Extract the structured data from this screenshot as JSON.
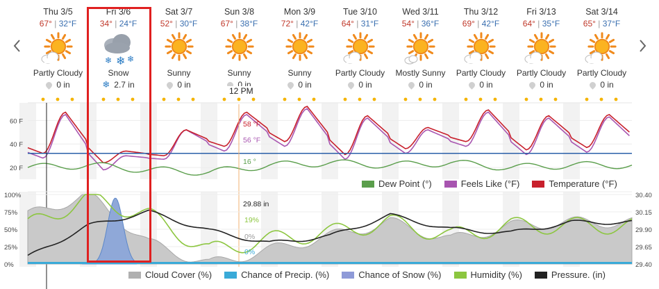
{
  "days": [
    {
      "date": "Thu 3/5",
      "hi": "67°",
      "lo": "32°F",
      "icon": "partly-cloudy-icon",
      "cond": "Partly Cloudy",
      "precip": "0 in",
      "precip_icon": "drop"
    },
    {
      "date": "Fri 3/6",
      "hi": "34°",
      "lo": "24°F",
      "icon": "snow-icon",
      "cond": "Snow",
      "precip": "2.7 in",
      "precip_icon": "snowflake"
    },
    {
      "date": "Sat 3/7",
      "hi": "52°",
      "lo": "30°F",
      "icon": "sunny-icon",
      "cond": "Sunny",
      "precip": "0 in",
      "precip_icon": "drop"
    },
    {
      "date": "Sun 3/8",
      "hi": "67°",
      "lo": "38°F",
      "icon": "sunny-icon",
      "cond": "Sunny",
      "precip": "0 in",
      "precip_icon": "drop"
    },
    {
      "date": "Mon 3/9",
      "hi": "72°",
      "lo": "42°F",
      "icon": "sunny-icon",
      "cond": "Sunny",
      "precip": "0 in",
      "precip_icon": "drop"
    },
    {
      "date": "Tue 3/10",
      "hi": "64°",
      "lo": "31°F",
      "icon": "partly-cloudy-icon",
      "cond": "Partly Cloudy",
      "precip": "0 in",
      "precip_icon": "drop"
    },
    {
      "date": "Wed 3/11",
      "hi": "54°",
      "lo": "36°F",
      "icon": "mostly-sunny-icon",
      "cond": "Mostly Sunny",
      "precip": "0 in",
      "precip_icon": "drop"
    },
    {
      "date": "Thu 3/12",
      "hi": "69°",
      "lo": "42°F",
      "icon": "partly-cloudy-icon",
      "cond": "Partly Cloudy",
      "precip": "0 in",
      "precip_icon": "drop"
    },
    {
      "date": "Fri 3/13",
      "hi": "64°",
      "lo": "35°F",
      "icon": "partly-cloudy-icon",
      "cond": "Partly Cloudy",
      "precip": "0 in",
      "precip_icon": "drop"
    },
    {
      "date": "Sat 3/14",
      "hi": "65°",
      "lo": "37°F",
      "icon": "partly-cloudy-icon",
      "cond": "Partly Cloudy",
      "precip": "0 in",
      "precip_icon": "drop"
    }
  ],
  "cursor": {
    "time": "12 PM",
    "temp": "58 °F",
    "feels": "56 °F",
    "dew": "16 °",
    "pressure": "29.88 in",
    "humidity": "19%",
    "cloud": "0%",
    "precip": "0%"
  },
  "temp_chart": {
    "yticks": [
      "60 F",
      "40 F",
      "20 F"
    ],
    "legend": [
      {
        "label": "Dew Point (°)",
        "color": "#5a9e4b"
      },
      {
        "label": "Feels Like (°F)",
        "color": "#a855b0"
      },
      {
        "label": "Temperature (°F)",
        "color": "#c8202c"
      }
    ]
  },
  "atmo_chart": {
    "yticks_left": [
      "100%",
      "75%",
      "50%",
      "25%",
      "0%"
    ],
    "yticks_right": [
      "30.40",
      "30.15",
      "29.90",
      "29.65",
      "29.40"
    ],
    "legend": [
      {
        "label": "Cloud Cover (%)",
        "color": "#b0b0b0"
      },
      {
        "label": "Chance of Precip. (%)",
        "color": "#3aaad8"
      },
      {
        "label": "Chance of Snow (%)",
        "color": "#8e9ad8"
      },
      {
        "label": "Humidity (%)",
        "color": "#8cc63f"
      },
      {
        "label": "Pressure. (in)",
        "color": "#222222"
      }
    ]
  },
  "chart_data": [
    {
      "type": "line",
      "x_days": [
        "Thu 3/5",
        "Fri 3/6",
        "Sat 3/7",
        "Sun 3/8",
        "Mon 3/9",
        "Tue 3/10",
        "Wed 3/11",
        "Thu 3/12",
        "Fri 3/13",
        "Sat 3/14"
      ],
      "ylabel": "",
      "ylim": [
        10,
        75
      ],
      "series": [
        {
          "name": "Temperature (°F)",
          "daily_high": [
            67,
            34,
            52,
            67,
            72,
            64,
            54,
            69,
            64,
            65
          ],
          "daily_low": [
            32,
            24,
            30,
            38,
            42,
            31,
            36,
            42,
            35,
            37
          ]
        },
        {
          "name": "Feels Like (°F)",
          "daily_high": [
            65,
            30,
            52,
            65,
            70,
            62,
            52,
            67,
            62,
            63
          ],
          "daily_low": [
            28,
            18,
            27,
            34,
            38,
            27,
            32,
            38,
            31,
            33
          ]
        },
        {
          "name": "Dew Point (°)",
          "daily_values": [
            20,
            22,
            18,
            16,
            22,
            24,
            22,
            24,
            20,
            22
          ]
        }
      ]
    },
    {
      "type": "area",
      "x_days": [
        "Thu 3/5",
        "Fri 3/6",
        "Sat 3/7",
        "Sun 3/8",
        "Mon 3/9",
        "Tue 3/10",
        "Wed 3/11",
        "Thu 3/12",
        "Fri 3/13",
        "Sat 3/14"
      ],
      "ylim": [
        0,
        100
      ],
      "y2lim": [
        29.4,
        30.4
      ],
      "series": [
        {
          "name": "Cloud Cover (%)",
          "daily_values": [
            70,
            100,
            30,
            0,
            20,
            40,
            60,
            35,
            55,
            60
          ]
        },
        {
          "name": "Chance of Snow (%)",
          "daily_values": [
            0,
            95,
            0,
            0,
            0,
            0,
            0,
            0,
            0,
            0
          ]
        },
        {
          "name": "Humidity (%)",
          "daily_values": [
            55,
            95,
            70,
            19,
            35,
            45,
            60,
            40,
            55,
            55
          ]
        },
        {
          "name": "Pressure. (in)",
          "daily_values": [
            29.5,
            29.95,
            30.15,
            29.88,
            29.7,
            29.8,
            30.1,
            29.9,
            29.85,
            30.0
          ]
        }
      ]
    }
  ]
}
